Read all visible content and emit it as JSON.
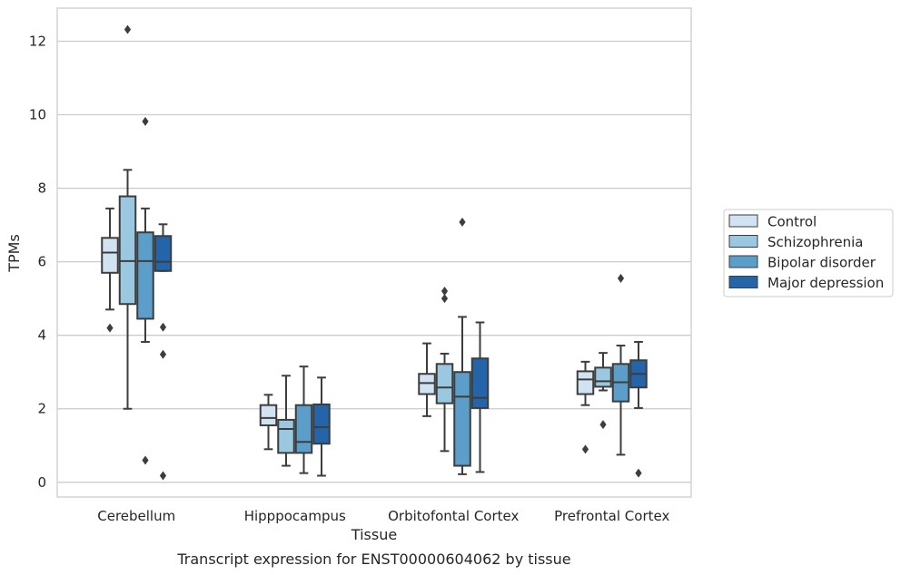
{
  "chart_data": {
    "type": "box",
    "title": "",
    "caption": "Transcript expression for ENST00000604062 by tissue",
    "xlabel": "Tissue",
    "ylabel": "TPMs",
    "ylim": [
      -0.4,
      12.9
    ],
    "yticks": [
      0,
      2,
      4,
      6,
      8,
      10,
      12
    ],
    "grid": "horizontal",
    "legend_position": "right",
    "categories": [
      "Cerebellum",
      "Hipppocampus",
      "Orbitofontal Cortex",
      "Prefrontal Cortex"
    ],
    "series": [
      {
        "name": "Control",
        "color": "#d1e2f2",
        "boxes": [
          {
            "min": 4.7,
            "q1": 5.7,
            "median": 6.25,
            "q3": 6.65,
            "max": 7.45,
            "outliers": [
              4.2
            ]
          },
          {
            "min": 0.9,
            "q1": 1.55,
            "median": 1.75,
            "q3": 2.1,
            "max": 2.38,
            "outliers": []
          },
          {
            "min": 1.8,
            "q1": 2.4,
            "median": 2.7,
            "q3": 2.95,
            "max": 3.78,
            "outliers": []
          },
          {
            "min": 2.1,
            "q1": 2.4,
            "median": 2.8,
            "q3": 3.02,
            "max": 3.28,
            "outliers": [
              0.9
            ]
          }
        ]
      },
      {
        "name": "Schizophrenia",
        "color": "#9ac8e0",
        "boxes": [
          {
            "min": 2.0,
            "q1": 4.85,
            "median": 6.02,
            "q3": 7.78,
            "max": 8.5,
            "outliers": [
              12.32
            ]
          },
          {
            "min": 0.45,
            "q1": 0.8,
            "median": 1.45,
            "q3": 1.7,
            "max": 2.9,
            "outliers": []
          },
          {
            "min": 0.85,
            "q1": 2.15,
            "median": 2.58,
            "q3": 3.22,
            "max": 3.5,
            "outliers": [
              5.2,
              5.0
            ]
          },
          {
            "min": 2.5,
            "q1": 2.6,
            "median": 2.75,
            "q3": 3.12,
            "max": 3.52,
            "outliers": [
              1.57
            ]
          }
        ]
      },
      {
        "name": "Bipolar disorder",
        "color": "#5a9ec9",
        "boxes": [
          {
            "min": 3.82,
            "q1": 4.45,
            "median": 6.02,
            "q3": 6.8,
            "max": 7.45,
            "outliers": [
              9.82,
              0.6
            ]
          },
          {
            "min": 0.25,
            "q1": 0.8,
            "median": 1.1,
            "q3": 2.1,
            "max": 3.15,
            "outliers": []
          },
          {
            "min": 0.22,
            "q1": 0.45,
            "median": 2.33,
            "q3": 3.0,
            "max": 4.5,
            "outliers": [
              7.08
            ]
          },
          {
            "min": 0.75,
            "q1": 2.2,
            "median": 2.72,
            "q3": 3.22,
            "max": 3.72,
            "outliers": [
              5.55
            ]
          }
        ]
      },
      {
        "name": "Major depression",
        "color": "#2365a8",
        "boxes": [
          {
            "min": 5.75,
            "q1": 5.75,
            "median": 6.0,
            "q3": 6.7,
            "max": 7.02,
            "outliers": [
              4.22,
              3.48,
              0.18
            ]
          },
          {
            "min": 0.18,
            "q1": 1.05,
            "median": 1.5,
            "q3": 2.12,
            "max": 2.85,
            "outliers": []
          },
          {
            "min": 0.28,
            "q1": 2.02,
            "median": 2.3,
            "q3": 3.37,
            "max": 4.35,
            "outliers": []
          },
          {
            "min": 2.02,
            "q1": 2.58,
            "median": 2.95,
            "q3": 3.32,
            "max": 3.82,
            "outliers": [
              0.25
            ]
          }
        ]
      }
    ]
  }
}
